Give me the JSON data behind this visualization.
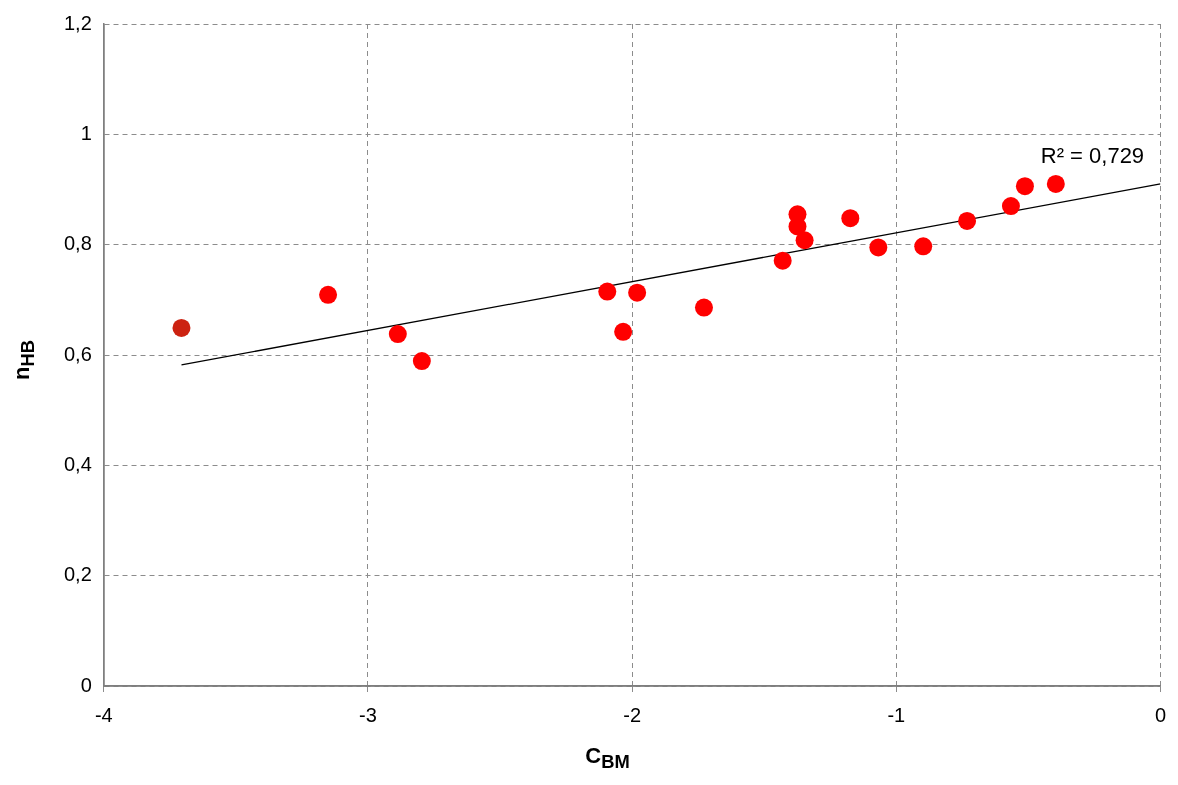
{
  "chart_data": {
    "type": "scatter",
    "xlabel": "C$_{ВМ}$",
    "ylabel": "n$_{НВ}$",
    "xlim": [
      -4,
      0
    ],
    "xticks": [
      -4,
      -3,
      -2,
      -1,
      0
    ],
    "ylim": [
      0,
      1.2
    ],
    "yticks": [
      0,
      {
        "value": 0.2,
        "label": "0,2"
      },
      {
        "value": 0.4,
        "label": "0,4"
      },
      {
        "value": 0.6,
        "label": "0,6"
      },
      {
        "value": 0.8,
        "label": "0,8"
      },
      1,
      {
        "value": 1.2,
        "label": "1,2"
      }
    ],
    "grid": true,
    "legend": false,
    "marker": "circle",
    "series": [
      {
        "colors": [
          "#cc2211",
          "#ff0000",
          "#ff0000",
          "#ff0000",
          "#ff0000",
          "#ff0000",
          "#ff0000",
          "#ff0000",
          "#ff0000",
          "#ff0000",
          "#ff0000",
          "#ff0000",
          "#ff0000",
          "#ff0000",
          "#ff0000",
          "#ff0000",
          "#ff0000",
          "#ff0000",
          "#ff0000"
        ],
        "x": [
          -3.706,
          -3.151,
          -2.887,
          -2.796,
          -2.094,
          -2.034,
          -1.981,
          -1.728,
          -1.43,
          -1.374,
          -1.374,
          -1.347,
          -1.174,
          -1.068,
          -0.898,
          -0.732,
          -0.566,
          -0.513,
          -0.396
        ],
        "values": [
          0.649,
          0.709,
          0.638,
          0.589,
          0.715,
          0.642,
          0.713,
          0.686,
          0.771,
          0.855,
          0.833,
          0.808,
          0.848,
          0.795,
          0.797,
          0.843,
          0.87,
          0.906,
          0.91
        ]
      },
      {
        "type": "line",
        "color": "#000000",
        "marker": "none",
        "x": [
          -3.706,
          0
        ],
        "values": [
          0.582,
          0.91
        ]
      }
    ],
    "annotations": [
      "R² = 0,729"
    ]
  }
}
